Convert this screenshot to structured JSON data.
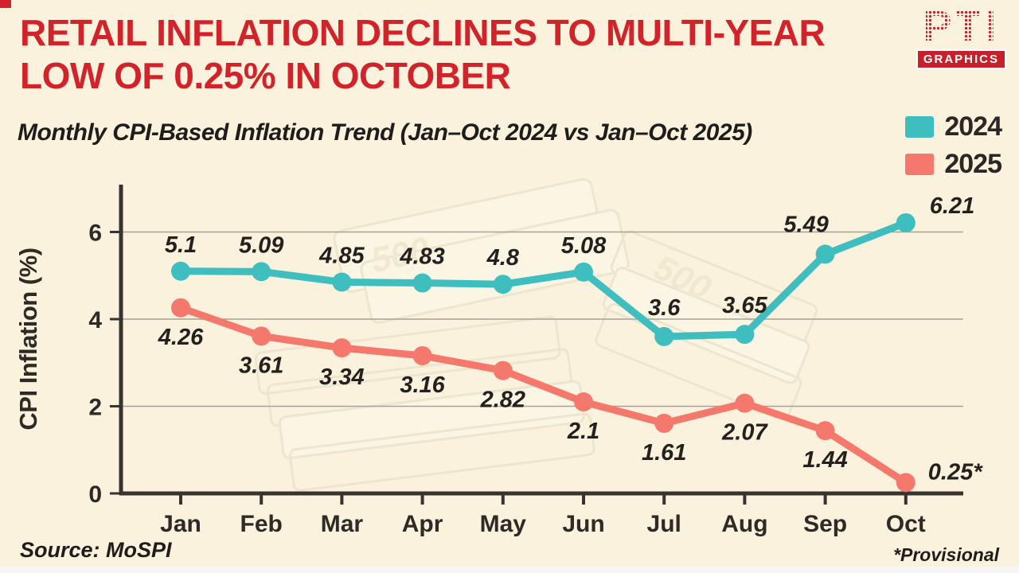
{
  "title": {
    "line1": "RETAIL INFLATION DECLINES TO MULTI-YEAR",
    "line2": "LOW OF 0.25% IN OCTOBER"
  },
  "logo": {
    "name": "PTI",
    "sub": "GRAPHICS"
  },
  "subtitle": "Monthly CPI-Based Inflation Trend (Jan–Oct 2024 vs Jan–Oct 2025)",
  "legend": [
    {
      "label": "2024",
      "color": "#3EBEBE"
    },
    {
      "label": "2025",
      "color": "#F4796C"
    }
  ],
  "chart_data": {
    "type": "line",
    "title": "Monthly CPI-Based Inflation Trend (Jan–Oct 2024 vs Jan–Oct 2025)",
    "categories": [
      "Jan",
      "Feb",
      "Mar",
      "Apr",
      "May",
      "Jun",
      "Jul",
      "Aug",
      "Sep",
      "Oct"
    ],
    "series": [
      {
        "name": "2024",
        "color": "#3EBEBE",
        "values": [
          5.1,
          5.09,
          4.85,
          4.83,
          4.8,
          5.08,
          3.6,
          3.65,
          5.49,
          6.21
        ],
        "labels": [
          "5.1",
          "5.09",
          "4.85",
          "4.83",
          "4.8",
          "5.08",
          "3.6",
          "3.65",
          "5.49",
          "6.21"
        ]
      },
      {
        "name": "2025",
        "color": "#F4796C",
        "values": [
          4.26,
          3.61,
          3.34,
          3.16,
          2.82,
          2.1,
          1.61,
          2.07,
          1.44,
          0.25
        ],
        "labels": [
          "4.26",
          "3.61",
          "3.34",
          "3.16",
          "2.82",
          "2.1",
          "1.61",
          "2.07",
          "1.44",
          "0.25*"
        ]
      }
    ],
    "xlabel": "",
    "ylabel": "CPI Inflation (%)",
    "yticks": [
      0,
      2,
      4,
      6
    ],
    "ylim": [
      0,
      7.1
    ],
    "grid": true,
    "legend_position": "top-right"
  },
  "footer": {
    "source": "Source: MoSPI",
    "note": "*Provisional"
  },
  "colors": {
    "background": "#FAF2DC",
    "headline_red": "#D2232A",
    "series_2024": "#3EBEBE",
    "series_2025": "#F4796C",
    "axis": "#38332E"
  }
}
